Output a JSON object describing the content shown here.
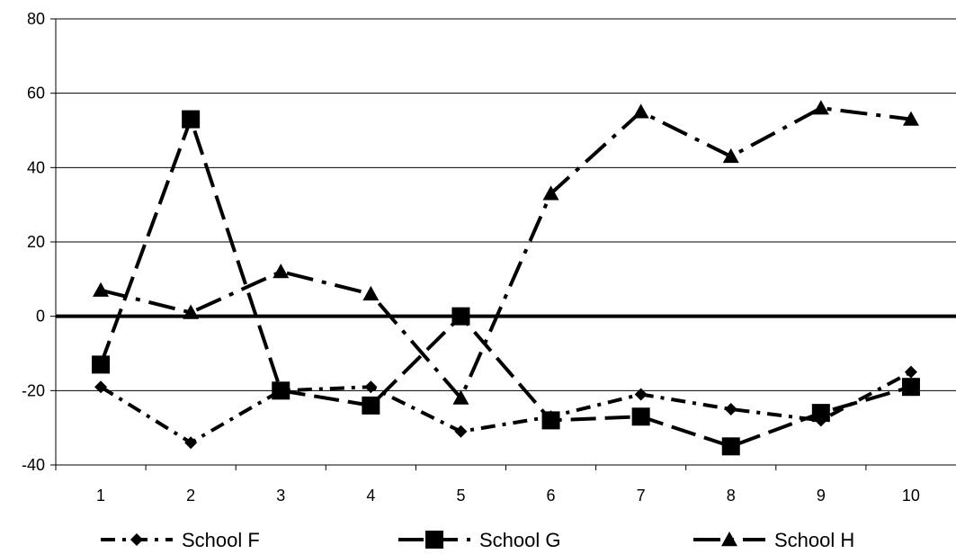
{
  "chart_data": {
    "type": "line",
    "title": "",
    "xlabel": "",
    "ylabel": "",
    "categories": [
      "1",
      "2",
      "3",
      "4",
      "5",
      "6",
      "7",
      "8",
      "9",
      "10"
    ],
    "ylim": [
      -40,
      80
    ],
    "yticks": [
      "-40",
      "-20",
      "0",
      "20",
      "40",
      "60",
      "80"
    ],
    "grid": "horizontal",
    "legend": "bottom",
    "series": [
      {
        "name": "School F",
        "marker": "diamond",
        "dash": "dash-dot",
        "color": "#000000",
        "values": [
          -19,
          -34,
          -20,
          -19,
          -31,
          -27,
          -21,
          -25,
          -28,
          -15
        ]
      },
      {
        "name": "School G",
        "marker": "square",
        "dash": "long-dash",
        "color": "#000000",
        "values": [
          -13,
          53,
          -20,
          -24,
          0,
          -28,
          -27,
          -35,
          -26,
          -19
        ]
      },
      {
        "name": "School H",
        "marker": "triangle",
        "dash": "long-dash-dot",
        "color": "#000000",
        "values": [
          7,
          1,
          12,
          6,
          -22,
          33,
          55,
          43,
          56,
          53
        ]
      }
    ]
  }
}
